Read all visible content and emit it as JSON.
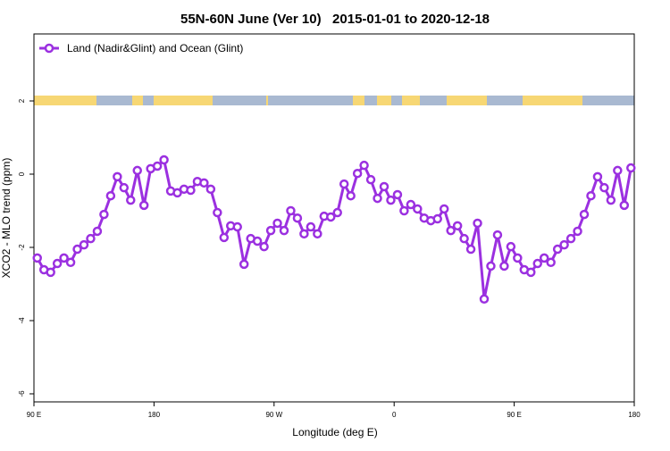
{
  "chart_data": {
    "type": "line",
    "title": "55N-60N June (Ver 10)   2015-01-01 to 2020-12-18",
    "x_label": "Longitude (deg E)",
    "y_label": "XCO2 - MLO trend (ppm)",
    "x": [
      92.5,
      97.5,
      102.5,
      107.5,
      112.5,
      117.5,
      122.5,
      127.5,
      132.5,
      137.5,
      142.5,
      147.5,
      152.5,
      157.5,
      162.5,
      167.5,
      172.5,
      177.5,
      182.5,
      187.5,
      192.5,
      197.5,
      202.5,
      207.5,
      212.5,
      217.5,
      222.5,
      227.5,
      232.5,
      237.5,
      242.5,
      247.5,
      252.5,
      257.5,
      262.5,
      267.5,
      272.5,
      277.5,
      282.5,
      287.5,
      292.5,
      297.5,
      302.5,
      307.5,
      312.5,
      317.5,
      322.5,
      327.5,
      332.5,
      337.5,
      342.5,
      347.5,
      352.5,
      357.5,
      362.5,
      367.5,
      372.5,
      377.5,
      382.5,
      387.5,
      392.5,
      397.5,
      402.5,
      407.5,
      412.5,
      417.5,
      422.5,
      427.5,
      432.5,
      437.5,
      442.5,
      447.5,
      452.5,
      457.5,
      462.5,
      467.5,
      472.5,
      477.5,
      482.5,
      487.5,
      492.5,
      497.5,
      502.5,
      507.5,
      512.5,
      517.5,
      522.5,
      527.5,
      532.5,
      537.5
    ],
    "series": [
      {
        "name": "Land (Nadir&Glint) and Ocean (Glint)",
        "color": "#9b30e0",
        "values": [
          -2.29,
          -2.61,
          -2.68,
          -2.44,
          -2.29,
          -2.41,
          -2.05,
          -1.93,
          -1.76,
          -1.56,
          -1.1,
          -0.59,
          -0.07,
          -0.37,
          -0.71,
          0.1,
          -0.85,
          0.15,
          0.22,
          0.39,
          -0.46,
          -0.51,
          -0.41,
          -0.44,
          -0.2,
          -0.24,
          -0.41,
          -1.05,
          -1.73,
          -1.41,
          -1.44,
          -2.46,
          -1.76,
          -1.83,
          -1.98,
          -1.54,
          -1.34,
          -1.54,
          -1.0,
          -1.2,
          -1.63,
          -1.44,
          -1.63,
          -1.15,
          -1.17,
          -1.05,
          -0.27,
          -0.59,
          0.02,
          0.24,
          -0.15,
          -0.66,
          -0.34,
          -0.71,
          -0.56,
          -1.0,
          -0.83,
          -0.95,
          -1.2,
          -1.27,
          -1.22,
          -0.95,
          -1.54,
          -1.41,
          -1.76,
          -2.05,
          -1.34,
          -3.41,
          -2.51,
          -1.66,
          -2.51,
          -1.98,
          -2.29,
          -2.61,
          -2.68,
          -2.44,
          -2.29,
          -2.41,
          -2.05,
          -1.93,
          -1.76,
          -1.56,
          -1.1,
          -0.59,
          -0.07,
          -0.37,
          -0.71,
          0.1,
          -0.85,
          0.17
        ]
      }
    ],
    "xlim": [
      90,
      540
    ],
    "xticks": [
      {
        "value": 90,
        "label": "90 E"
      },
      180,
      {
        "value": 270,
        "label": "90 W"
      },
      {
        "value": 360,
        "label": "0"
      },
      {
        "value": 450,
        "label": "90 E"
      },
      {
        "value": 540,
        "label": "180"
      }
    ],
    "ylim": [
      -6.22,
      3.83
    ],
    "yticks": [
      -6,
      -4,
      -2,
      0,
      2
    ],
    "legend": "top-left"
  }
}
